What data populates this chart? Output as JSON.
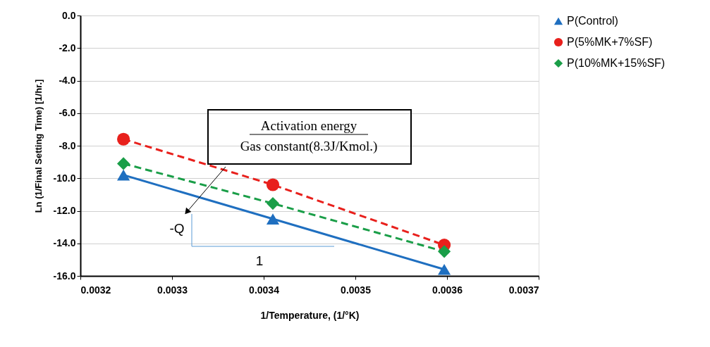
{
  "chart_data": {
    "type": "line",
    "xlabel": "1/Temperature, (1/°K)",
    "ylabel": "Ln (1/Final Setting Time) [1/hr.]",
    "x": [
      0.003247,
      0.00341,
      0.003597
    ],
    "series": [
      {
        "name": "P(Control)",
        "color": "#1f6fc0",
        "marker": "triangle",
        "line_style": "solid",
        "values": [
          -9.8,
          -12.5,
          -15.6
        ]
      },
      {
        "name": "P(5%MK+7%SF)",
        "color": "#e8201c",
        "marker": "circle",
        "line_style": "dashed",
        "values": [
          -7.6,
          -10.4,
          -14.1
        ]
      },
      {
        "name": "P(10%MK+15%SF)",
        "color": "#1a9e48",
        "marker": "diamond",
        "line_style": "dashed",
        "values": [
          -9.1,
          -11.55,
          -14.5
        ]
      }
    ],
    "xlim": [
      0.0032,
      0.0037
    ],
    "xticks": [
      0.0032,
      0.0033,
      0.0034,
      0.0035,
      0.0036,
      0.0037
    ],
    "ylim": [
      -16,
      0
    ],
    "yticks": [
      {
        "value": -16,
        "label": "-16.0"
      },
      {
        "value": -14,
        "label": "-14.0"
      },
      {
        "value": -12,
        "label": "-12.0"
      },
      {
        "value": -10,
        "label": "-10.0"
      },
      {
        "value": -8,
        "label": "-8.0"
      },
      {
        "value": -6,
        "label": "-6.0"
      },
      {
        "value": -4,
        "label": "-4.0"
      },
      {
        "value": -2,
        "label": "-2.0"
      },
      {
        "value": 0,
        "label": "0.0"
      }
    ],
    "grid": "y",
    "legend": "right",
    "annotations": [
      "Activation energy",
      "Gas constant(8.3J/Kmol.)",
      "-Q",
      "1"
    ]
  }
}
